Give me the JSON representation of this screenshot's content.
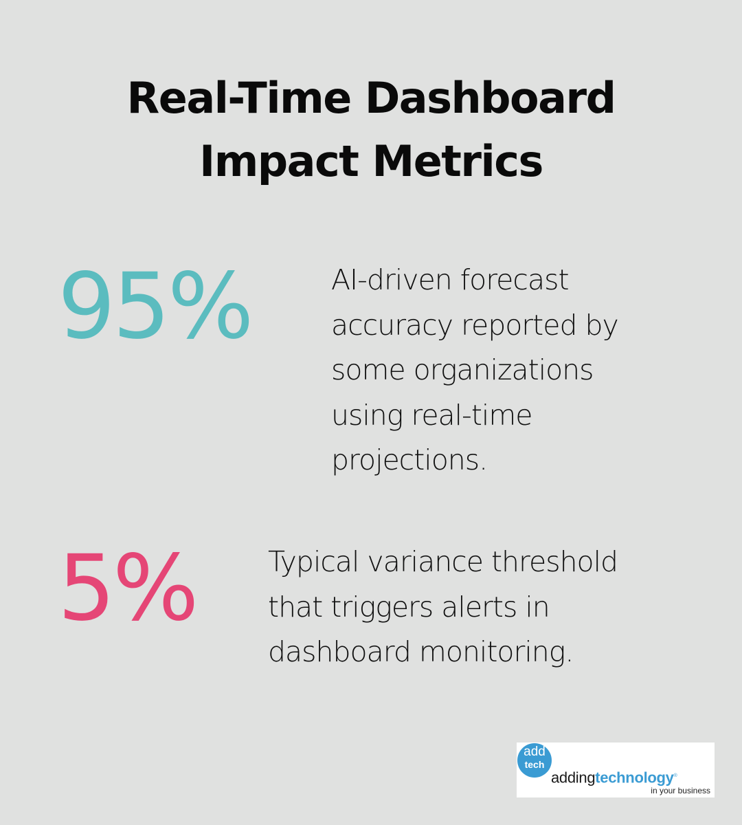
{
  "title": {
    "line1": "Real-Time Dashboard",
    "line2": "Impact Metrics"
  },
  "metrics": [
    {
      "value": "95%",
      "color": "#5bbcbf",
      "description": "AI-driven forecast\naccuracy reported by\nsome organizations\nusing real-time\nprojections."
    },
    {
      "value": "5%",
      "color": "#e54676",
      "description": "Typical variance threshold\nthat triggers alerts in\ndashboard monitoring."
    }
  ],
  "logo": {
    "circle_top": "add",
    "circle_bottom": "tech",
    "word_regular": "adding",
    "word_bold": "technology",
    "registered": "®",
    "tagline": "in your business",
    "brand_color": "#3a9bd3"
  },
  "background_color": "#e0e1e0"
}
